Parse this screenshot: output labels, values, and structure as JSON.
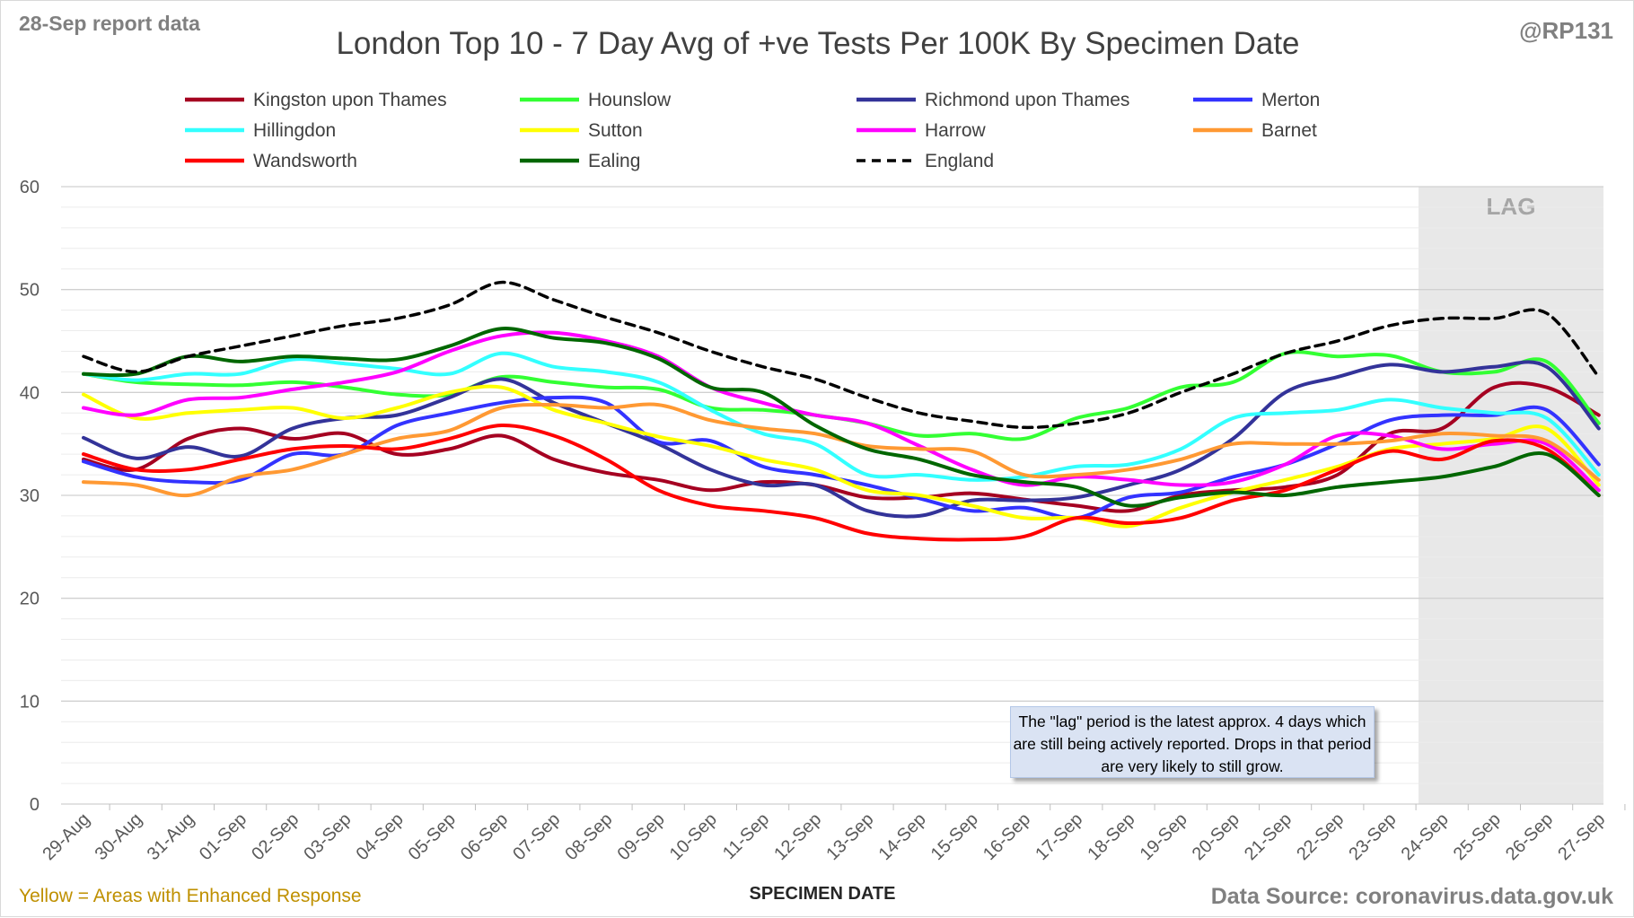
{
  "header": {
    "report_label": "28-Sep report data",
    "author": "@RP131"
  },
  "footer": {
    "note": "Yellow = Areas with Enhanced Response",
    "source": "Data Source: coronavirus.data.gov.uk"
  },
  "lag_note": "The \"lag\" period is the latest approx. 4 days which are still being actively reported. Drops in that period are very likely to still grow.",
  "chart_data": {
    "type": "line",
    "title": "London Top 10 - 7 Day Avg of +ve Tests Per 100K By Specimen Date",
    "xlabel": "SPECIMEN DATE",
    "ylabel": "",
    "ylim": [
      0,
      60
    ],
    "yticks": [
      0,
      10,
      20,
      30,
      40,
      50,
      60
    ],
    "grid": true,
    "legend_position": "top",
    "x": [
      "29-Aug",
      "30-Aug",
      "31-Aug",
      "01-Sep",
      "02-Sep",
      "03-Sep",
      "04-Sep",
      "05-Sep",
      "06-Sep",
      "07-Sep",
      "08-Sep",
      "09-Sep",
      "10-Sep",
      "11-Sep",
      "12-Sep",
      "13-Sep",
      "14-Sep",
      "15-Sep",
      "16-Sep",
      "17-Sep",
      "18-Sep",
      "19-Sep",
      "20-Sep",
      "21-Sep",
      "22-Sep",
      "23-Sep",
      "24-Sep",
      "25-Sep",
      "26-Sep",
      "27-Sep"
    ],
    "lag_region": {
      "label": "LAG",
      "from": "24-Sep",
      "to": "27-Sep",
      "color": "#e8e8e8"
    },
    "series": [
      {
        "name": "Kingston upon Thames",
        "color": "#a50021",
        "dash": false,
        "values": [
          33.5,
          32.5,
          35.5,
          36.5,
          35.5,
          36.0,
          34.0,
          34.5,
          35.8,
          33.5,
          32.2,
          31.5,
          30.5,
          31.3,
          31.0,
          29.8,
          29.8,
          30.2,
          29.6,
          29.0,
          28.5,
          30.0,
          30.5,
          30.8,
          32.0,
          36.0,
          36.5,
          40.5,
          40.5,
          37.8
        ]
      },
      {
        "name": "Hounslow",
        "color": "#33ff33",
        "dash": false,
        "values": [
          41.8,
          41.0,
          40.8,
          40.7,
          41.0,
          40.5,
          39.8,
          39.8,
          41.5,
          41.0,
          40.5,
          40.3,
          38.5,
          38.3,
          37.8,
          37.0,
          35.8,
          36.0,
          35.5,
          37.5,
          38.5,
          40.5,
          41.0,
          43.8,
          43.5,
          43.6,
          42.0,
          42.0,
          43.0,
          37.0
        ]
      },
      {
        "name": "Richmond upon Thames",
        "color": "#333399",
        "dash": false,
        "values": [
          35.6,
          33.6,
          34.7,
          33.8,
          36.5,
          37.5,
          37.8,
          39.5,
          41.3,
          39.0,
          37.0,
          35.0,
          32.5,
          31.0,
          31.0,
          28.5,
          28.0,
          29.5,
          29.5,
          29.8,
          31.0,
          32.5,
          35.5,
          40.0,
          41.5,
          42.7,
          42.0,
          42.5,
          42.5,
          36.5
        ]
      },
      {
        "name": "Merton",
        "color": "#3333ff",
        "dash": false,
        "values": [
          33.3,
          31.8,
          31.3,
          31.5,
          34.0,
          34.0,
          36.8,
          38.0,
          39.0,
          39.5,
          39.0,
          35.2,
          35.3,
          32.8,
          32.0,
          31.0,
          29.7,
          28.5,
          28.8,
          27.8,
          29.8,
          30.3,
          31.8,
          33.0,
          35.0,
          37.3,
          37.8,
          37.8,
          38.3,
          33.0
        ]
      },
      {
        "name": "Hillingdon",
        "color": "#33ffff",
        "dash": false,
        "values": [
          41.8,
          41.2,
          41.8,
          41.8,
          43.2,
          42.8,
          42.3,
          41.8,
          43.8,
          42.5,
          42.0,
          41.0,
          38.3,
          36.0,
          35.0,
          32.0,
          32.0,
          31.5,
          31.8,
          32.8,
          33.0,
          34.5,
          37.5,
          38.0,
          38.3,
          39.3,
          38.5,
          38.0,
          37.5,
          32.0
        ]
      },
      {
        "name": "Sutton",
        "color": "#ffff00",
        "dash": false,
        "values": [
          39.8,
          37.5,
          38.0,
          38.3,
          38.5,
          37.5,
          38.5,
          40.0,
          40.5,
          38.3,
          37.0,
          35.7,
          34.8,
          33.5,
          32.5,
          30.5,
          30.0,
          29.0,
          27.8,
          27.8,
          27.0,
          28.8,
          30.3,
          31.5,
          32.8,
          34.5,
          35.0,
          35.5,
          36.5,
          31.0
        ]
      },
      {
        "name": "Harrow",
        "color": "#ff00ff",
        "dash": false,
        "values": [
          38.5,
          37.8,
          39.3,
          39.5,
          40.3,
          41.0,
          42.0,
          44.0,
          45.5,
          45.8,
          45.0,
          43.5,
          40.5,
          39.0,
          37.8,
          37.0,
          34.8,
          32.5,
          31.0,
          31.8,
          31.5,
          31.0,
          31.3,
          33.0,
          35.8,
          35.8,
          34.5,
          35.0,
          35.0,
          30.5
        ]
      },
      {
        "name": "Barnet",
        "color": "#ff9933",
        "dash": false,
        "values": [
          31.3,
          31.0,
          30.0,
          31.8,
          32.5,
          34.0,
          35.5,
          36.3,
          38.5,
          38.8,
          38.5,
          38.8,
          37.3,
          36.5,
          36.0,
          34.8,
          34.5,
          34.3,
          32.0,
          32.0,
          32.5,
          33.5,
          35.0,
          35.0,
          35.0,
          35.3,
          36.0,
          35.8,
          35.3,
          31.5
        ]
      },
      {
        "name": "Wandsworth",
        "color": "#ff0000",
        "dash": false,
        "values": [
          34.0,
          32.5,
          32.5,
          33.5,
          34.5,
          34.8,
          34.5,
          35.5,
          36.8,
          35.8,
          33.5,
          30.5,
          29.0,
          28.5,
          27.8,
          26.3,
          25.8,
          25.7,
          26.0,
          27.8,
          27.3,
          27.8,
          29.5,
          30.5,
          32.5,
          34.3,
          33.5,
          35.3,
          34.5,
          30.0
        ]
      },
      {
        "name": "Ealing",
        "color": "#006600",
        "dash": false,
        "values": [
          41.8,
          41.8,
          43.5,
          43.0,
          43.5,
          43.3,
          43.2,
          44.5,
          46.2,
          45.3,
          44.8,
          43.3,
          40.5,
          40.0,
          36.8,
          34.5,
          33.5,
          32.0,
          31.3,
          30.8,
          29.0,
          29.8,
          30.3,
          30.0,
          30.8,
          31.3,
          31.8,
          32.8,
          34.0,
          30.0
        ]
      },
      {
        "name": "England",
        "color": "#000000",
        "dash": true,
        "values": [
          43.5,
          42.0,
          43.5,
          44.5,
          45.5,
          46.5,
          47.2,
          48.5,
          50.7,
          49.0,
          47.3,
          45.8,
          44.0,
          42.5,
          41.3,
          39.5,
          38.0,
          37.2,
          36.6,
          37.0,
          38.0,
          40.0,
          41.8,
          43.8,
          45.0,
          46.5,
          47.2,
          47.2,
          47.7,
          41.5
        ]
      }
    ]
  }
}
